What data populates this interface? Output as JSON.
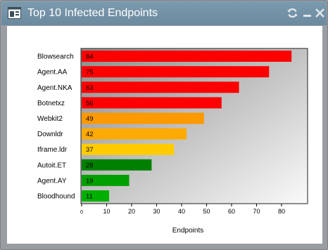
{
  "window": {
    "title": "Top 10 Infected Endpoints",
    "controls": {
      "refresh": "refresh-icon",
      "minimize": "minimize-icon",
      "close": "close-icon"
    }
  },
  "chart_data": {
    "type": "bar",
    "orientation": "horizontal",
    "categories": [
      "Blowsearch",
      "Agent.AA",
      "Agent.NKA",
      "Botnetxz",
      "Webkit2",
      "Downldr",
      "Iframe.ldr",
      "Autoit.ET",
      "Agent.AY",
      "Bloodhound"
    ],
    "values": [
      84,
      75,
      63,
      56,
      49,
      42,
      37,
      28,
      19,
      11
    ],
    "data_labels": [
      "84",
      "75",
      "63",
      "56",
      "49",
      "42",
      "37",
      "28",
      "19",
      "11"
    ],
    "colors": [
      "#ff0000",
      "#ff0000",
      "#ff0000",
      "#ff0000",
      "#ff9900",
      "#ffaa00",
      "#ffcc00",
      "#008000",
      "#00a000",
      "#00b000"
    ],
    "xticks": [
      0,
      10,
      20,
      30,
      40,
      50,
      60,
      70,
      80
    ],
    "xlim": [
      0,
      90
    ],
    "xlabel": "Endpoints",
    "ylabel": "",
    "title": "",
    "grid": false,
    "legend": "none",
    "background": "gradient-gray"
  }
}
